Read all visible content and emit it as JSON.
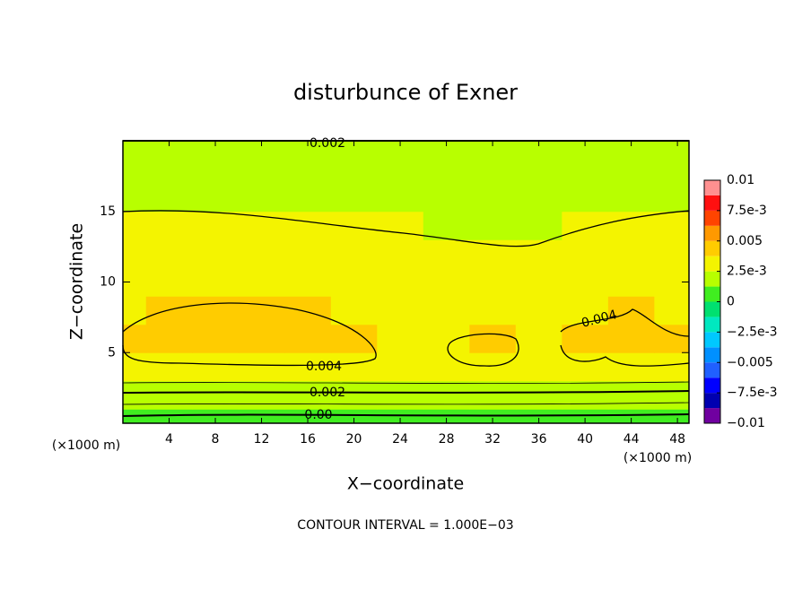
{
  "chart_data": {
    "type": "contour",
    "title": "disturbunce of Exner",
    "x_label": "X−coordinate",
    "y_label": "Z−coordinate",
    "x_unit_left": "(×1000 m)",
    "x_unit_right": "(×1000 m)",
    "note": "CONTOUR INTERVAL = 1.000E−03",
    "xlim": [
      0,
      49
    ],
    "ylim": [
      0,
      20
    ],
    "xticks": [
      4,
      8,
      12,
      16,
      20,
      24,
      28,
      32,
      36,
      40,
      44,
      48
    ],
    "yticks": [
      5,
      10,
      15
    ],
    "x": [
      0,
      4,
      8,
      12,
      16,
      20,
      24,
      28,
      32,
      36,
      40,
      44,
      48
    ],
    "y": [
      0,
      2,
      4,
      6,
      8,
      10,
      12,
      14,
      16,
      18,
      20
    ],
    "z": [
      [
        0.0003,
        0.0003,
        0.0003,
        0.0003,
        0.0003,
        0.0003,
        0.0003,
        0.0003,
        0.0003,
        0.0003,
        0.0003,
        0.0003,
        0.0003
      ],
      [
        0.0021,
        0.0021,
        0.0021,
        0.0021,
        0.0021,
        0.0021,
        0.0021,
        0.0021,
        0.0021,
        0.0021,
        0.0021,
        0.0021,
        0.0021
      ],
      [
        0.0037,
        0.0037,
        0.0037,
        0.0037,
        0.0037,
        0.0037,
        0.0037,
        0.0037,
        0.0037,
        0.0037,
        0.0037,
        0.0037,
        0.0037
      ],
      [
        0.0041,
        0.0043,
        0.0045,
        0.0044,
        0.0042,
        0.004,
        0.0035,
        0.0036,
        0.0041,
        0.0037,
        0.004,
        0.0042,
        0.0041
      ],
      [
        0.0037,
        0.004,
        0.0041,
        0.0041,
        0.004,
        0.0037,
        0.0034,
        0.0034,
        0.0035,
        0.0034,
        0.0036,
        0.0038,
        0.0037
      ],
      [
        0.0033,
        0.0033,
        0.0033,
        0.0033,
        0.0033,
        0.0033,
        0.0033,
        0.0033,
        0.0033,
        0.0033,
        0.0033,
        0.0033,
        0.0033
      ],
      [
        0.003,
        0.003,
        0.003,
        0.003,
        0.003,
        0.003,
        0.003,
        0.003,
        0.003,
        0.003,
        0.003,
        0.003,
        0.003
      ],
      [
        0.0028,
        0.0028,
        0.0028,
        0.0028,
        0.0027,
        0.0026,
        0.0025,
        0.0024,
        0.0023,
        0.0023,
        0.0025,
        0.0026,
        0.0027
      ],
      [
        0.0024,
        0.0024,
        0.0024,
        0.0024,
        0.0024,
        0.0024,
        0.0024,
        0.0024,
        0.0024,
        0.0024,
        0.0024,
        0.0024,
        0.0024
      ],
      [
        0.0022,
        0.0022,
        0.0022,
        0.0022,
        0.0022,
        0.0022,
        0.0022,
        0.0022,
        0.0022,
        0.0022,
        0.0022,
        0.0022,
        0.0022
      ],
      [
        0.0019,
        0.0019,
        0.0019,
        0.0019,
        0.0019,
        0.0019,
        0.0019,
        0.0019,
        0.0019,
        0.0019,
        0.0019,
        0.0019,
        0.0019
      ]
    ],
    "contour_labels": [
      "0.002",
      "0.004",
      "0.004",
      "0.002",
      "0.00"
    ],
    "colorbar": {
      "levels": [
        -0.01,
        -0.00875,
        -0.0075,
        -0.00625,
        -0.005,
        -0.00375,
        -0.0025,
        -0.00125,
        0,
        0.00125,
        0.0025,
        0.00375,
        0.005,
        0.00625,
        0.0075,
        0.00875,
        0.01
      ],
      "colors": [
        "#7000a0",
        "#0000b0",
        "#0000ff",
        "#2060ff",
        "#0090ff",
        "#00c8ff",
        "#00e8c0",
        "#00e070",
        "#40ee20",
        "#b8ff00",
        "#f4f400",
        "#ffcc00",
        "#ff9900",
        "#ff4400",
        "#ff1010",
        "#ff9090"
      ],
      "lim": [
        -0.01,
        0.01
      ],
      "ticks": [
        0.01,
        {
          "value": 0.0075,
          "label": "7.5e-3"
        },
        0.005,
        {
          "value": 0.0025,
          "label": "2.5e-3"
        },
        0,
        {
          "value": -0.0025,
          "label": "−2.5e-3"
        },
        {
          "value": -0.005,
          "label": "−0.005"
        },
        {
          "value": -0.0075,
          "label": "−7.5e-3"
        },
        {
          "value": -0.01,
          "label": "−0.01"
        }
      ]
    }
  }
}
